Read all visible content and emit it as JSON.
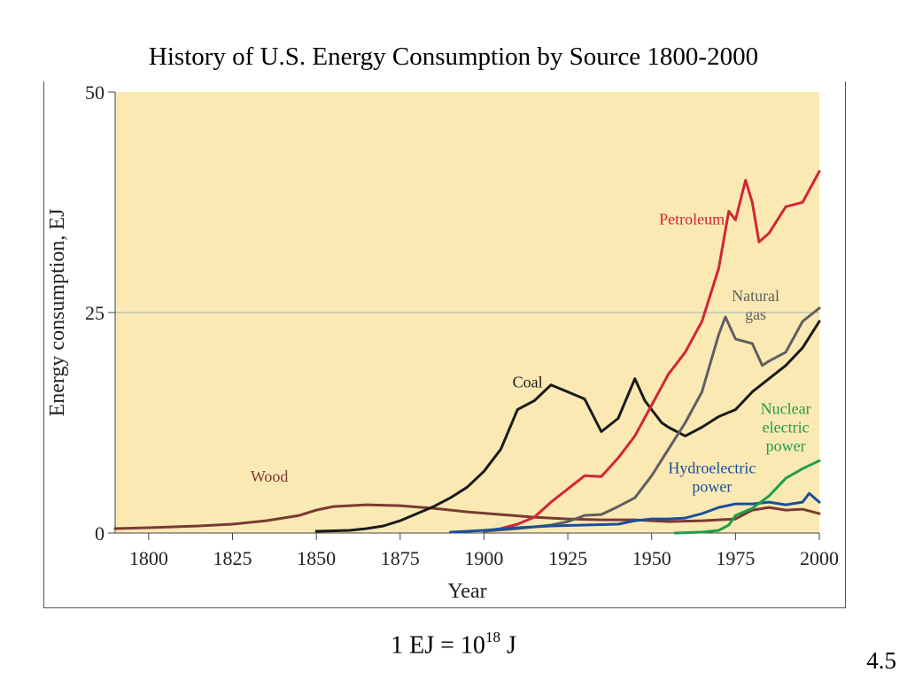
{
  "slide": {
    "title": "History of U.S. Energy Consumption by Source 1800-2000",
    "note_prefix": "1 EJ = 10",
    "note_exponent": "18",
    "note_suffix": " J",
    "number": "4.5"
  },
  "chart_data": {
    "type": "line",
    "xlabel": "Year",
    "ylabel": "Energy consumption, EJ",
    "xlim": [
      1790,
      2000
    ],
    "ylim": [
      0,
      50
    ],
    "xticks": [
      "1800",
      "1825",
      "1850",
      "1875",
      "1900",
      "1925",
      "1950",
      "1975",
      "2000"
    ],
    "yticks": [
      "0",
      "25",
      "50"
    ],
    "gridlines_y": [
      25
    ],
    "background": "#fbe9b4",
    "series": [
      {
        "name": "Wood",
        "color": "#7a3a33",
        "label": [
          "Wood"
        ],
        "points": [
          [
            1790,
            0.5
          ],
          [
            1800,
            0.6
          ],
          [
            1815,
            0.8
          ],
          [
            1825,
            1.0
          ],
          [
            1835,
            1.4
          ],
          [
            1845,
            2.0
          ],
          [
            1850,
            2.6
          ],
          [
            1855,
            3.0
          ],
          [
            1865,
            3.2
          ],
          [
            1875,
            3.1
          ],
          [
            1885,
            2.8
          ],
          [
            1895,
            2.4
          ],
          [
            1905,
            2.1
          ],
          [
            1915,
            1.8
          ],
          [
            1925,
            1.6
          ],
          [
            1935,
            1.5
          ],
          [
            1945,
            1.5
          ],
          [
            1955,
            1.3
          ],
          [
            1965,
            1.4
          ],
          [
            1970,
            1.5
          ],
          [
            1975,
            1.6
          ],
          [
            1980,
            2.6
          ],
          [
            1985,
            2.9
          ],
          [
            1990,
            2.6
          ],
          [
            1995,
            2.7
          ],
          [
            2000,
            2.2
          ]
        ]
      },
      {
        "name": "Coal",
        "color": "#1a1a1a",
        "label": [
          "Coal"
        ],
        "points": [
          [
            1850,
            0.2
          ],
          [
            1860,
            0.3
          ],
          [
            1865,
            0.5
          ],
          [
            1870,
            0.8
          ],
          [
            1875,
            1.4
          ],
          [
            1880,
            2.2
          ],
          [
            1885,
            3.0
          ],
          [
            1890,
            4.0
          ],
          [
            1895,
            5.2
          ],
          [
            1900,
            7.0
          ],
          [
            1905,
            9.5
          ],
          [
            1910,
            14.0
          ],
          [
            1915,
            15.0
          ],
          [
            1920,
            16.8
          ],
          [
            1925,
            16.0
          ],
          [
            1930,
            15.2
          ],
          [
            1935,
            11.5
          ],
          [
            1940,
            13.0
          ],
          [
            1945,
            17.5
          ],
          [
            1948,
            15.0
          ],
          [
            1950,
            14.0
          ],
          [
            1953,
            12.5
          ],
          [
            1955,
            12.0
          ],
          [
            1960,
            11.0
          ],
          [
            1965,
            12.0
          ],
          [
            1970,
            13.2
          ],
          [
            1975,
            14.0
          ],
          [
            1980,
            16.0
          ],
          [
            1985,
            17.5
          ],
          [
            1990,
            19.0
          ],
          [
            1995,
            21.0
          ],
          [
            2000,
            24.0
          ]
        ]
      },
      {
        "name": "Petroleum",
        "color": "#d12638",
        "label": [
          "Petroleum"
        ],
        "points": [
          [
            1900,
            0.2
          ],
          [
            1905,
            0.5
          ],
          [
            1910,
            1.0
          ],
          [
            1915,
            1.8
          ],
          [
            1920,
            3.5
          ],
          [
            1925,
            5.0
          ],
          [
            1930,
            6.5
          ],
          [
            1935,
            6.4
          ],
          [
            1940,
            8.5
          ],
          [
            1945,
            11.0
          ],
          [
            1950,
            14.5
          ],
          [
            1955,
            18.0
          ],
          [
            1960,
            20.5
          ],
          [
            1965,
            24.0
          ],
          [
            1970,
            30.0
          ],
          [
            1973,
            36.5
          ],
          [
            1975,
            35.5
          ],
          [
            1978,
            40.0
          ],
          [
            1980,
            37.5
          ],
          [
            1982,
            33.0
          ],
          [
            1985,
            34.0
          ],
          [
            1990,
            37.0
          ],
          [
            1995,
            37.5
          ],
          [
            2000,
            41.0
          ]
        ]
      },
      {
        "name": "Natural gas",
        "color": "#5f5f5f",
        "label": [
          "Natural",
          "gas"
        ],
        "points": [
          [
            1900,
            0.2
          ],
          [
            1910,
            0.5
          ],
          [
            1920,
            0.9
          ],
          [
            1925,
            1.3
          ],
          [
            1930,
            2.0
          ],
          [
            1935,
            2.1
          ],
          [
            1940,
            3.0
          ],
          [
            1945,
            4.0
          ],
          [
            1950,
            6.5
          ],
          [
            1955,
            9.5
          ],
          [
            1960,
            12.5
          ],
          [
            1965,
            16.0
          ],
          [
            1970,
            22.5
          ],
          [
            1972,
            24.5
          ],
          [
            1975,
            22.0
          ],
          [
            1980,
            21.5
          ],
          [
            1983,
            19.0
          ],
          [
            1985,
            19.5
          ],
          [
            1990,
            20.5
          ],
          [
            1995,
            24.0
          ],
          [
            2000,
            25.5
          ]
        ]
      },
      {
        "name": "Hydroelectric power",
        "color": "#1b4f9c",
        "label": [
          "Hydroelectric",
          "power"
        ],
        "points": [
          [
            1890,
            0.1
          ],
          [
            1900,
            0.3
          ],
          [
            1910,
            0.6
          ],
          [
            1920,
            0.8
          ],
          [
            1930,
            0.9
          ],
          [
            1940,
            1.0
          ],
          [
            1945,
            1.4
          ],
          [
            1950,
            1.6
          ],
          [
            1955,
            1.6
          ],
          [
            1960,
            1.7
          ],
          [
            1965,
            2.2
          ],
          [
            1970,
            2.9
          ],
          [
            1975,
            3.3
          ],
          [
            1980,
            3.3
          ],
          [
            1985,
            3.5
          ],
          [
            1990,
            3.2
          ],
          [
            1995,
            3.5
          ],
          [
            1997,
            4.5
          ],
          [
            2000,
            3.5
          ]
        ]
      },
      {
        "name": "Nuclear electric power",
        "color": "#1f9e4a",
        "label": [
          "Nuclear",
          "electric",
          "power"
        ],
        "points": [
          [
            1957,
            0.0
          ],
          [
            1965,
            0.1
          ],
          [
            1970,
            0.3
          ],
          [
            1973,
            0.9
          ],
          [
            1975,
            2.0
          ],
          [
            1980,
            2.8
          ],
          [
            1985,
            4.2
          ],
          [
            1990,
            6.2
          ],
          [
            1995,
            7.3
          ],
          [
            2000,
            8.2
          ]
        ]
      }
    ]
  }
}
